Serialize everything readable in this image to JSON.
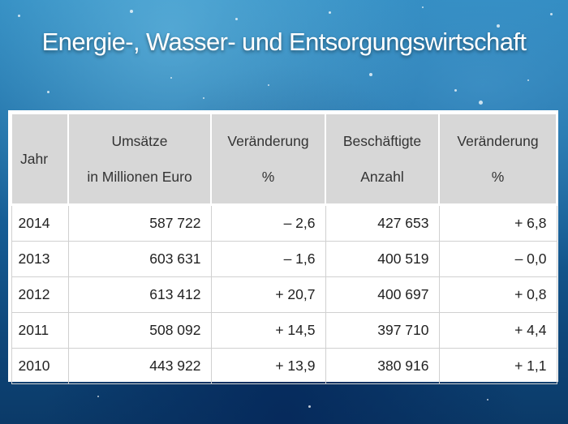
{
  "slide": {
    "title": "Energie-, Wasser- und Entsorgungswirtschaft"
  },
  "table": {
    "headers": {
      "year": "Jahr",
      "revenue_line1": "Umsätze",
      "revenue_line2": "in Millionen Euro",
      "revenue_change_line1": "Veränderung",
      "revenue_change_line2": "%",
      "employees_line1": "Beschäftigte",
      "employees_line2": "Anzahl",
      "employees_change_line1": "Veränderung",
      "employees_change_line2": "%"
    },
    "rows": [
      {
        "year": "2014",
        "revenue": "587 722",
        "revenue_change": "– 2,6",
        "employees": "427 653",
        "employees_change": "+ 6,8"
      },
      {
        "year": "2013",
        "revenue": "603 631",
        "revenue_change": "– 1,6",
        "employees": "400 519",
        "employees_change": "– 0,0"
      },
      {
        "year": "2012",
        "revenue": "613 412",
        "revenue_change": "+ 20,7",
        "employees": "400 697",
        "employees_change": "+ 0,8"
      },
      {
        "year": "2011",
        "revenue": "508 092",
        "revenue_change": "+ 14,5",
        "employees": "397 710",
        "employees_change": "+ 4,4"
      },
      {
        "year": "2010",
        "revenue": "443 922",
        "revenue_change": "+ 13,9",
        "employees": "380 916",
        "employees_change": "+ 1,1"
      }
    ]
  },
  "colors": {
    "header_bg": "#d7d7d7",
    "water_blue": "#1f72aa",
    "title_text": "#ffffff"
  }
}
